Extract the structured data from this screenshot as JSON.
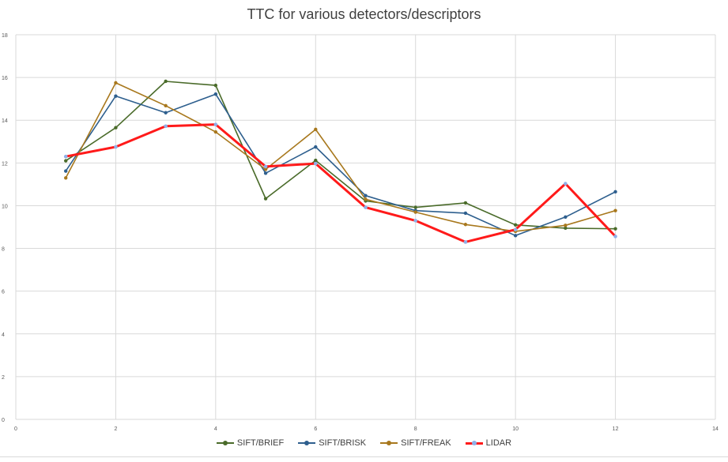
{
  "chart_data": {
    "type": "line",
    "title": "TTC for various detectors/descriptors",
    "xlabel": "",
    "ylabel": "",
    "xlim": [
      0,
      14
    ],
    "ylim": [
      0,
      18
    ],
    "xticks": [
      "0",
      "2",
      "4",
      "6",
      "8",
      "10",
      "12",
      "14"
    ],
    "yticks": [
      "0",
      "2",
      "4",
      "6",
      "8",
      "10",
      "12",
      "14",
      "16",
      "18"
    ],
    "grid": true,
    "legend_position": "bottom",
    "x": [
      1,
      2,
      3,
      4,
      5,
      6,
      7,
      8,
      9,
      10,
      11,
      12
    ],
    "series": [
      {
        "name": "SIFT/BRIEF",
        "color": "#4a6b2a",
        "values": [
          12.1,
          13.65,
          15.82,
          15.63,
          10.33,
          12.12,
          10.22,
          9.92,
          10.13,
          9.1,
          8.95,
          8.92
        ]
      },
      {
        "name": "SIFT/BRISK",
        "color": "#2e5f8e",
        "values": [
          11.62,
          15.13,
          14.35,
          15.22,
          11.52,
          12.75,
          10.47,
          9.77,
          9.65,
          8.6,
          9.47,
          10.65
        ]
      },
      {
        "name": "SIFT/FREAK",
        "color": "#a8781d",
        "values": [
          11.3,
          15.75,
          14.68,
          13.45,
          11.7,
          13.57,
          10.3,
          9.7,
          9.12,
          8.8,
          9.08,
          9.77
        ]
      },
      {
        "name": "LIDAR",
        "color": "#ff1a1a",
        "values": [
          12.3,
          12.75,
          13.72,
          13.8,
          11.83,
          11.97,
          9.92,
          9.3,
          8.3,
          8.88,
          11.03,
          8.56
        ]
      }
    ]
  }
}
